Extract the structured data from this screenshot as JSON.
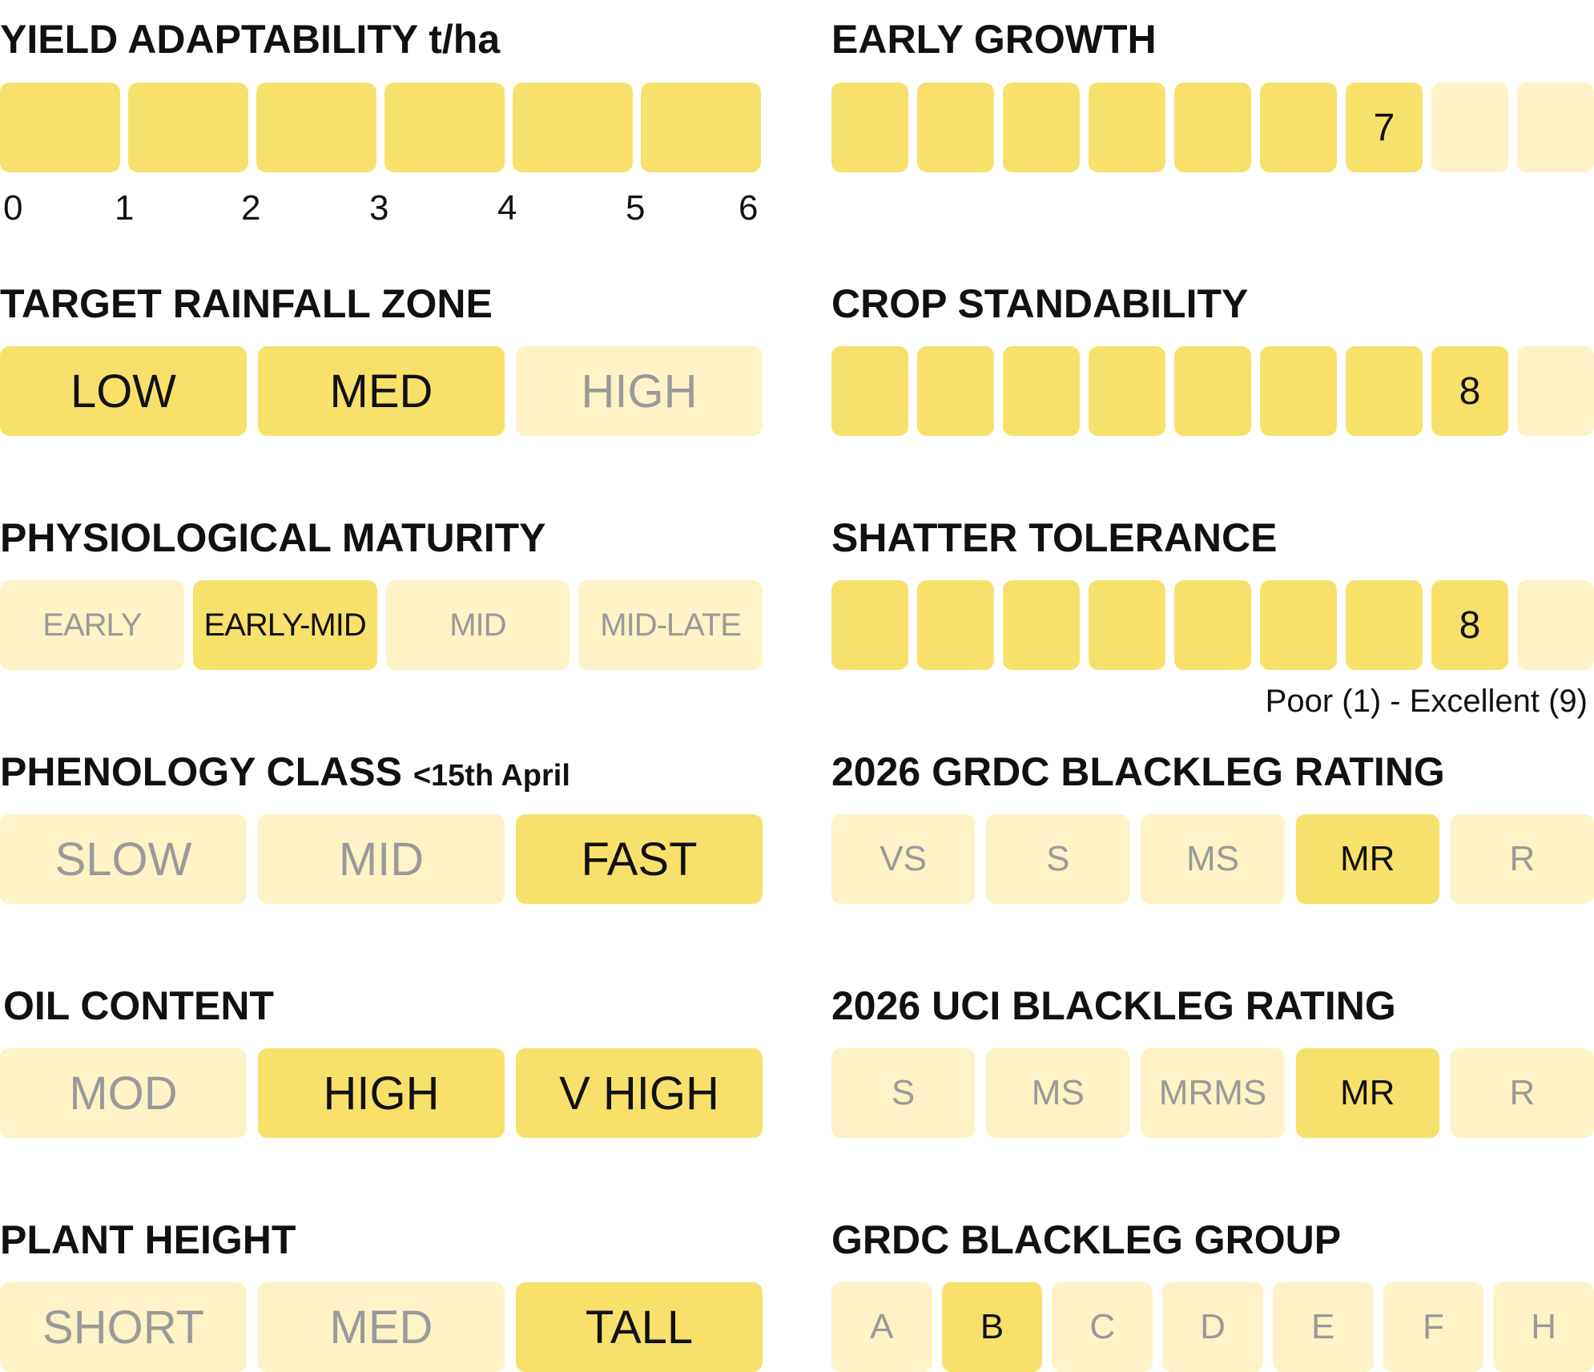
{
  "yield": {
    "title": "YIELD ADAPTABILITY",
    "unit": "t/ha",
    "ticks": [
      "0",
      "1",
      "2",
      "3",
      "4",
      "5",
      "6"
    ]
  },
  "rainfall": {
    "title": "TARGET RAINFALL ZONE",
    "options": [
      "LOW",
      "MED",
      "HIGH"
    ],
    "selected": [
      "LOW",
      "MED"
    ]
  },
  "maturity": {
    "title": "PHYSIOLOGICAL MATURITY",
    "options": [
      "EARLY",
      "EARLY-MID",
      "MID",
      "MID-LATE"
    ],
    "selected": [
      "EARLY-MID"
    ]
  },
  "phenology": {
    "title": "PHENOLOGY CLASS",
    "subtitle": "<15th April",
    "options": [
      "SLOW",
      "MID",
      "FAST"
    ],
    "selected": [
      "FAST"
    ]
  },
  "oil": {
    "title": "OIL CONTENT",
    "options": [
      "MOD",
      "HIGH",
      "V HIGH"
    ],
    "selected": [
      "HIGH",
      "V HIGH"
    ]
  },
  "height": {
    "title": "PLANT HEIGHT",
    "options": [
      "SHORT",
      "MED",
      "TALL"
    ],
    "selected": [
      "TALL"
    ]
  },
  "early_growth": {
    "title": "EARLY GROWTH",
    "rating": "7",
    "max": 9
  },
  "standability": {
    "title": "CROP STANDABILITY",
    "rating": "8",
    "max": 9
  },
  "shatter": {
    "title": "SHATTER TOLERANCE",
    "rating": "8",
    "max": 9,
    "scale_note": "Poor (1) - Excellent (9)"
  },
  "grdc_rating": {
    "title": "2026 GRDC BLACKLEG RATING",
    "options": [
      "VS",
      "S",
      "MS",
      "MR",
      "R"
    ],
    "selected": [
      "MR"
    ]
  },
  "uci_rating": {
    "title": "2026 UCI BLACKLEG RATING",
    "options": [
      "S",
      "MS",
      "MRMS",
      "MR",
      "R"
    ],
    "selected": [
      "MR"
    ]
  },
  "grdc_group": {
    "title": "GRDC BLACKLEG GROUP",
    "options": [
      "A",
      "B",
      "C",
      "D",
      "E",
      "F",
      "H"
    ],
    "selected": [
      "B"
    ]
  },
  "colors": {
    "active": "#f8e16b",
    "inactive": "#fdf3c6",
    "active_text": "#111111",
    "inactive_text": "#9a9a9a"
  }
}
